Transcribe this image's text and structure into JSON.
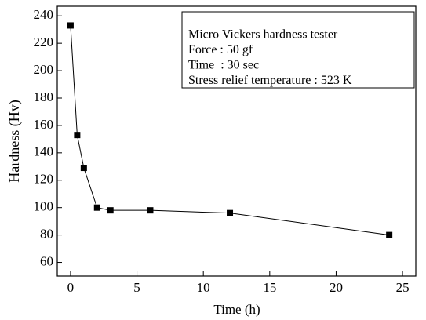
{
  "chart_data": {
    "type": "line",
    "x_label": "Time (h)",
    "y_label": "Hardness (Hv)",
    "annotation": [
      "Micro Vickers hardness tester",
      "Force : 50 gf",
      "Time  : 30 sec",
      "Stress relief temperature : 523 K"
    ],
    "series": [
      {
        "color": "#000000",
        "x": [
          0,
          0.5,
          1,
          2,
          3,
          6,
          12,
          24
        ],
        "values": [
          233,
          153,
          129,
          100,
          98,
          98,
          96,
          80
        ]
      }
    ],
    "xlim": [
      -1,
      26
    ],
    "xticks": [
      0,
      5,
      10,
      15,
      20,
      25
    ],
    "ylim": [
      50,
      247
    ],
    "yticks": [
      60,
      80,
      100,
      120,
      140,
      160,
      180,
      200,
      220,
      240
    ]
  }
}
